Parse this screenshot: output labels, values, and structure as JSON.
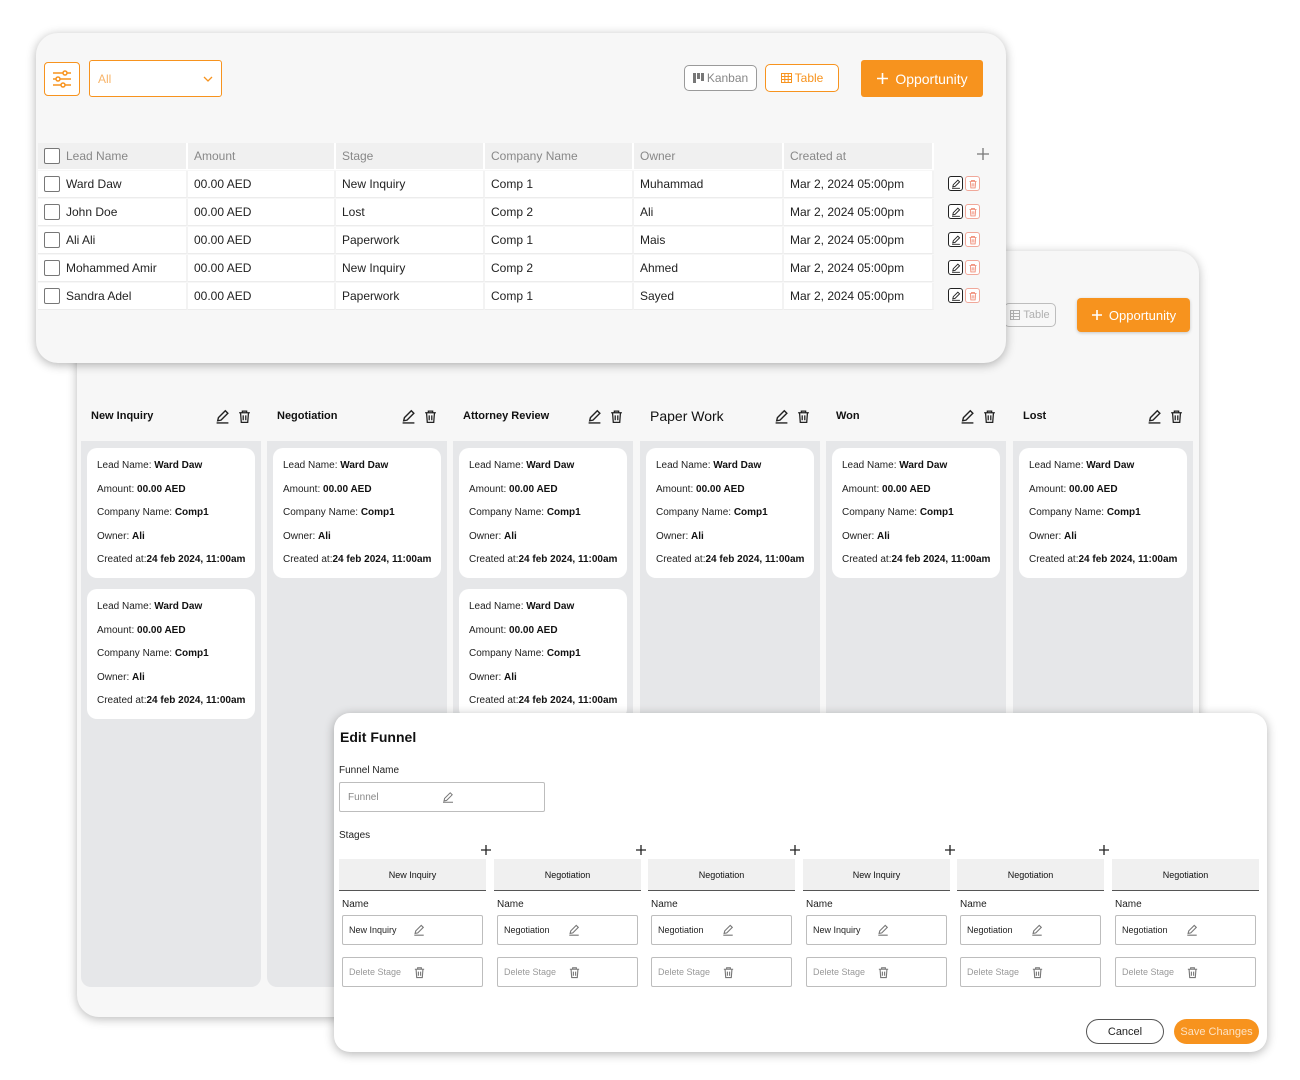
{
  "table_view": {
    "filter_value": "All",
    "kanban_label": "Kanban",
    "table_label": "Table",
    "opportunity_label": "Opportunity",
    "columns": [
      "Lead Name",
      "Amount",
      "Stage",
      "Company Name",
      "Owner",
      "Created at"
    ],
    "rows": [
      {
        "lead": "Ward Daw",
        "amount": "00.00 AED",
        "stage": "New Inquiry",
        "company": "Comp 1",
        "owner": "Muhammad",
        "created": "Mar 2, 2024 05:00pm"
      },
      {
        "lead": "John Doe",
        "amount": "00.00 AED",
        "stage": "Lost",
        "company": "Comp 2",
        "owner": "Ali",
        "created": "Mar 2, 2024 05:00pm"
      },
      {
        "lead": "Ali Ali",
        "amount": "00.00 AED",
        "stage": "Paperwork",
        "company": "Comp 1",
        "owner": "Mais",
        "created": "Mar 2, 2024 05:00pm"
      },
      {
        "lead": "Mohammed Amir",
        "amount": "00.00 AED",
        "stage": "New Inquiry",
        "company": "Comp 2",
        "owner": "Ahmed",
        "created": "Mar 2, 2024 05:00pm"
      },
      {
        "lead": "Sandra Adel",
        "amount": "00.00 AED",
        "stage": "Paperwork",
        "company": "Comp 1",
        "owner": "Sayed",
        "created": "Mar 2, 2024 05:00pm"
      }
    ],
    "colors": {
      "accent": "#f7931e",
      "delete": "#f0a89a"
    }
  },
  "kanban_view": {
    "table_label": "Table",
    "opportunity_label": "Opportunity",
    "card_labels": {
      "lead": "Lead Name: ",
      "amount": "Amount: ",
      "company": "Company Name: ",
      "owner": "Owner: ",
      "created": "Created at:"
    },
    "card": {
      "lead": "Ward Daw",
      "amount": "00.00 AED",
      "company": "Comp1",
      "owner": "Ali",
      "created": "24 feb 2024, 11:00am"
    },
    "columns": [
      {
        "title": "New Inquiry",
        "cards": 2
      },
      {
        "title": "Negotiation",
        "cards": 1
      },
      {
        "title": "Attorney Review",
        "cards": 2
      },
      {
        "title": "Paper Work",
        "cards": 1
      },
      {
        "title": "Won",
        "cards": 1
      },
      {
        "title": "Lost",
        "cards": 1
      }
    ]
  },
  "edit_funnel": {
    "title": "Edit Funnel",
    "funnel_name_label": "Funnel Name",
    "funnel_name_placeholder": "Funnel",
    "stages_label": "Stages",
    "name_label": "Name",
    "delete_stage_label": "Delete Stage",
    "stages": [
      "New Inquiry",
      "Negotiation",
      "Negotiation",
      "New Inquiry",
      "Negotiation",
      "Negotiation"
    ],
    "cancel_label": "Cancel",
    "save_label": "Save Changes"
  },
  "icons": [
    "filter-icon",
    "chevron-down-icon",
    "kanban-icon",
    "table-icon",
    "plus-icon",
    "edit-icon",
    "trash-icon"
  ]
}
